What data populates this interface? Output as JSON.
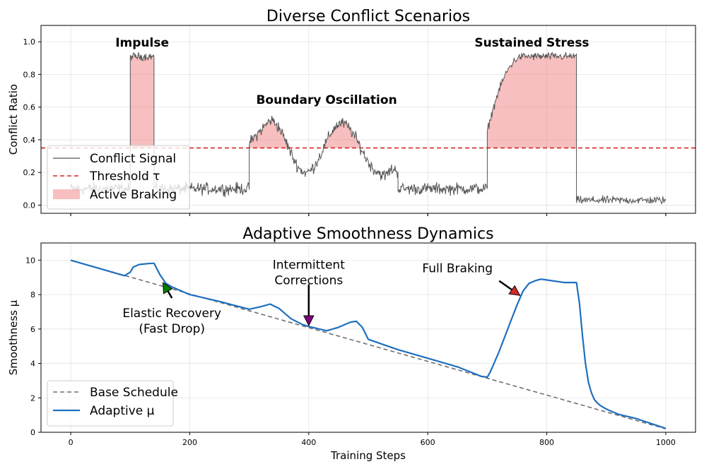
{
  "chart_data": [
    {
      "type": "line",
      "title": "Diverse Conflict Scenarios",
      "xlabel": "",
      "ylabel": "Conflict Ratio",
      "xlim": [
        -50,
        1050
      ],
      "ylim": [
        -0.05,
        1.1
      ],
      "xticks": [
        0,
        200,
        400,
        600,
        800,
        1000
      ],
      "yticks": [
        "0.0",
        "0.2",
        "0.4",
        "0.6",
        "0.8",
        "1.0"
      ],
      "grid": true,
      "threshold": 0.35,
      "series": [
        {
          "name": "Conflict Signal",
          "color": "#555555",
          "segments": [
            {
              "x": [
                0,
                100
              ],
              "base": 0.1,
              "noise": 0.03
            },
            {
              "x": [
                100,
                140
              ],
              "base": 0.91,
              "noise": 0.02
            },
            {
              "x": [
                140,
                300
              ],
              "base": 0.1,
              "noise": 0.03
            },
            {
              "x": [
                300,
                550
              ],
              "shape": "double-bump",
              "peaks": [
                [
                  335,
                  0.52
                ],
                [
                  455,
                  0.5
                ]
              ],
              "troughs": [
                [
                  395,
                  0.2
                ],
                [
                  520,
                  0.2
                ]
              ]
            },
            {
              "x": [
                550,
                700
              ],
              "base": 0.1,
              "noise": 0.03
            },
            {
              "x": [
                700,
                850
              ],
              "shape": "ramp-plateau",
              "start": 0.45,
              "plateau": 0.91
            },
            {
              "x": [
                850,
                1000
              ],
              "base": 0.03,
              "noise": 0.02
            }
          ]
        },
        {
          "name": "Threshold τ",
          "color": "#d62728",
          "value": 0.35
        },
        {
          "name": "Active Braking",
          "color": "#f08080",
          "fill_above": 0.35
        }
      ],
      "legend": {
        "placement": "lower-left",
        "entries": [
          "Conflict Signal",
          "Threshold τ",
          "Active Braking"
        ]
      },
      "annotations": [
        {
          "text": "Impulse",
          "x": 120,
          "y": 0.97
        },
        {
          "text": "Boundary Oscillation",
          "x": 430,
          "y": 0.62
        },
        {
          "text": "Sustained Stress",
          "x": 775,
          "y": 0.97
        }
      ]
    },
    {
      "type": "line",
      "title": "Adaptive Smoothness Dynamics",
      "xlabel": "Training Steps",
      "ylabel": "Smoothness μ",
      "xlim": [
        -50,
        1050
      ],
      "ylim": [
        0,
        11
      ],
      "xticks": [
        0,
        200,
        400,
        600,
        800,
        1000
      ],
      "yticks": [
        0,
        2,
        4,
        6,
        8,
        10
      ],
      "grid": true,
      "series": [
        {
          "name": "Base Schedule",
          "style": "dashed",
          "color": "#707070",
          "x": [
            0,
            1000
          ],
          "y": [
            10,
            0.2
          ]
        },
        {
          "name": "Adaptive μ",
          "color": "#1f6fbf",
          "x": [
            0,
            90,
            100,
            105,
            115,
            130,
            140,
            150,
            160,
            170,
            180,
            200,
            250,
            300,
            320,
            335,
            350,
            370,
            390,
            400,
            430,
            450,
            470,
            480,
            490,
            500,
            550,
            600,
            650,
            690,
            700,
            705,
            710,
            720,
            730,
            740,
            750,
            760,
            770,
            780,
            790,
            800,
            810,
            820,
            830,
            840,
            850,
            855,
            860,
            865,
            870,
            875,
            880,
            885,
            890,
            900,
            910,
            920,
            950,
            1000
          ],
          "y": [
            10,
            9.1,
            9.3,
            9.6,
            9.75,
            9.8,
            9.82,
            9.15,
            8.65,
            8.45,
            8.3,
            8.0,
            7.6,
            7.15,
            7.3,
            7.45,
            7.2,
            6.6,
            6.25,
            6.15,
            5.9,
            6.1,
            6.4,
            6.45,
            6.1,
            5.4,
            4.8,
            4.3,
            3.8,
            3.25,
            3.2,
            3.5,
            3.9,
            4.7,
            5.6,
            6.5,
            7.4,
            8.2,
            8.65,
            8.8,
            8.9,
            8.85,
            8.8,
            8.75,
            8.7,
            8.7,
            8.7,
            7.5,
            5.6,
            4.0,
            2.9,
            2.3,
            1.9,
            1.7,
            1.55,
            1.35,
            1.2,
            1.05,
            0.8,
            0.22
          ]
        }
      ],
      "legend": {
        "placement": "lower-left",
        "entries": [
          "Base Schedule",
          "Adaptive μ"
        ]
      },
      "annotations": [
        {
          "text": [
            "Elastic Recovery",
            "(Fast Drop)"
          ],
          "arrow_color": "#008000",
          "arrow_tip": [
            155,
            8.7
          ],
          "arrow_tail": [
            170,
            7.8
          ],
          "text_at": [
            170,
            6.7
          ]
        },
        {
          "text": [
            "Intermittent",
            "Corrections"
          ],
          "arrow_color": "#800080",
          "arrow_tip": [
            400,
            6.2
          ],
          "arrow_tail": [
            400,
            8.6
          ],
          "text_at": [
            400,
            9.5
          ]
        },
        {
          "text": [
            "Full Braking"
          ],
          "arrow_color": "#d62728",
          "arrow_tip": [
            755,
            7.95
          ],
          "arrow_tail": [
            720,
            8.8
          ],
          "text_at": [
            650,
            9.3
          ]
        }
      ]
    }
  ]
}
